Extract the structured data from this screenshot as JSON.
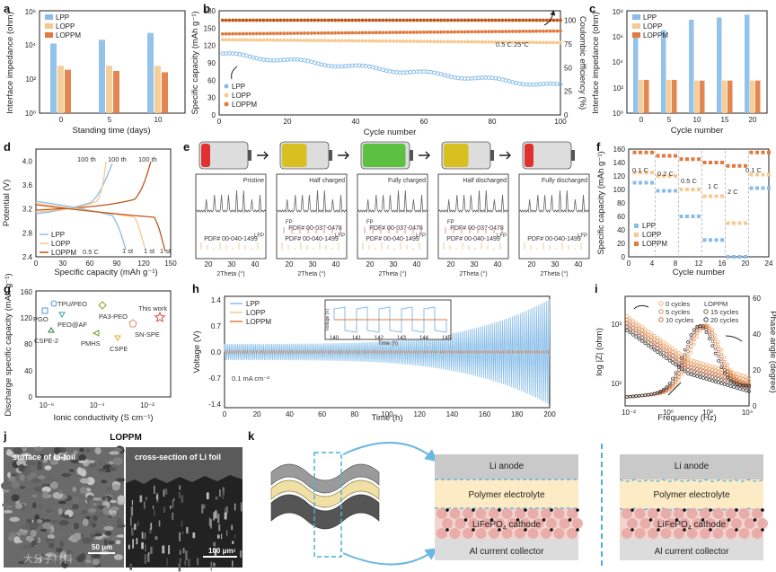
{
  "colors": {
    "lpp": "#87bde8",
    "lopp": "#f5c98f",
    "loppm": "#e07a3e",
    "loppm_dark": "#c05618",
    "red": "#e04a4a"
  },
  "panel_labels": {
    "a": "a",
    "b": "b",
    "c": "c",
    "d": "d",
    "e": "e",
    "f": "f",
    "g": "g",
    "h": "h",
    "i": "i",
    "j": "j",
    "k": "k"
  },
  "legend_names": [
    "LPP",
    "LOPP",
    "LOPPM"
  ],
  "chart_data": [
    {
      "id": "a",
      "type": "bar",
      "xlabel": "Standing time (days)",
      "ylabel": "Interface impedance (ohm)",
      "categories": [
        "0",
        "5",
        "10"
      ],
      "y_scale": "log",
      "ylim": [
        1,
        1000000
      ],
      "yticks": [
        "10⁰",
        "10²",
        "10⁴",
        "10⁶"
      ],
      "series": [
        {
          "name": "LPP",
          "values": [
            12000,
            20000,
            50000
          ]
        },
        {
          "name": "LOPP",
          "values": [
            600,
            600,
            600
          ]
        },
        {
          "name": "LOPPM",
          "values": [
            350,
            300,
            250
          ]
        }
      ]
    },
    {
      "id": "b",
      "type": "scatter",
      "xlabel": "Cycle number",
      "ylabel": "Specific capacity (mAh g⁻¹)",
      "y2label": "Coulombic efficiency (%)",
      "xlim": [
        0,
        100
      ],
      "ylim": [
        0,
        180
      ],
      "y2lim": [
        0,
        110
      ],
      "xticks": [
        "0",
        "20",
        "40",
        "60",
        "80",
        "100"
      ],
      "yticks": [
        "0",
        "30",
        "60",
        "90",
        "120",
        "150",
        "180"
      ],
      "y2ticks": [
        "0",
        "25",
        "50",
        "75",
        "100"
      ],
      "annotation": "0.5 C  25°C",
      "series": [
        {
          "name": "LPP",
          "start": 105,
          "end": 50
        },
        {
          "name": "LOPP",
          "start": 130,
          "end": 125
        },
        {
          "name": "LOPPM",
          "start": 140,
          "end": 145
        },
        {
          "name": "CE",
          "value": 100
        }
      ]
    },
    {
      "id": "c",
      "type": "bar",
      "xlabel": "Cycle number",
      "ylabel": "Interface impedance (ohm)",
      "categories": [
        "0",
        "5",
        "10",
        "15",
        "20"
      ],
      "y_scale": "log",
      "ylim": [
        1,
        100000000
      ],
      "yticks": [
        "10⁰",
        "10²",
        "10⁴",
        "10⁶",
        "10⁸"
      ],
      "series": [
        {
          "name": "LPP",
          "values": [
            1000000,
            3000000,
            20000000,
            30000000,
            50000000
          ]
        },
        {
          "name": "LOPP",
          "values": [
            400,
            400,
            350,
            350,
            350
          ]
        },
        {
          "name": "LOPPM",
          "values": [
            400,
            400,
            350,
            350,
            350
          ]
        }
      ]
    },
    {
      "id": "d",
      "type": "line",
      "xlabel": "Specific capacity (mAh g⁻¹)",
      "ylabel": "Potential (V)",
      "xlim": [
        0,
        150
      ],
      "ylim": [
        2.4,
        4.2
      ],
      "xticks": [
        "0",
        "30",
        "60",
        "90",
        "120",
        "150"
      ],
      "yticks": [
        "2.4",
        "2.8",
        "3.2",
        "3.6",
        "4.0"
      ],
      "annotation": "0.5 C",
      "labels": [
        "100 th",
        "100 th",
        "100 th",
        "1 st",
        "1 st",
        "1 st"
      ]
    },
    {
      "id": "f",
      "type": "scatter",
      "xlabel": "Cycle number",
      "ylabel": "Specific capacity (mAh g⁻¹)",
      "xlim": [
        0,
        24
      ],
      "ylim": [
        0,
        160
      ],
      "xticks": [
        "0",
        "4",
        "8",
        "12",
        "16",
        "20",
        "24"
      ],
      "yticks": [
        "0",
        "20",
        "40",
        "60",
        "80",
        "100",
        "120",
        "140",
        "160"
      ],
      "rates": [
        "0.1 C",
        "0.2 C",
        "0.5 C",
        "1 C",
        "2 C",
        "0.1 C"
      ],
      "series": [
        {
          "name": "LPP",
          "values": [
            110,
            98,
            60,
            25,
            0,
            102
          ]
        },
        {
          "name": "LOPP",
          "values": [
            125,
            120,
            100,
            90,
            50,
            122
          ]
        },
        {
          "name": "LOPPM",
          "values": [
            155,
            150,
            145,
            140,
            135,
            155
          ]
        }
      ]
    },
    {
      "id": "g",
      "type": "scatter",
      "xlabel": "Ionic conductivity (S cm⁻¹)",
      "ylabel": "Discharge specific capacity (mAh g⁻¹)",
      "x_scale": "log",
      "ylim": [
        0,
        160
      ],
      "xticks": [
        "10⁻⁶",
        "10⁻⁴",
        "10⁻²"
      ],
      "yticks": [
        "0",
        "40",
        "80",
        "120",
        "160"
      ],
      "points": [
        {
          "name": "TPU/PEO"
        },
        {
          "name": "PGO"
        },
        {
          "name": "PEO@AF"
        },
        {
          "name": "CSPE-2"
        },
        {
          "name": "PA3-PEO"
        },
        {
          "name": "PMHS"
        },
        {
          "name": "CSPE"
        },
        {
          "name": "SN-SPE"
        },
        {
          "name": "This work"
        }
      ]
    },
    {
      "id": "h",
      "type": "line",
      "xlabel": "Time (h)",
      "ylabel": "Voltage (V)",
      "xlim": [
        0,
        200
      ],
      "ylim": [
        -1.5,
        1.5
      ],
      "xticks": [
        "0",
        "20",
        "40",
        "60",
        "80",
        "100",
        "120",
        "140",
        "160",
        "180",
        "200"
      ],
      "yticks": [
        "-1.4",
        "-0.7",
        "0.0",
        "0.7",
        "1.4"
      ],
      "annotation": "0.1 mA cm⁻²",
      "inset": {
        "xticks": [
          "140",
          "141",
          "142",
          "143",
          "144",
          "145"
        ],
        "xlabel": "Time (h)",
        "ylabel": "Voltage (V)"
      }
    },
    {
      "id": "i",
      "type": "line",
      "xlabel": "Frequency (Hz)",
      "ylabel": "log |Z| (ohm)",
      "y2label": "Phase angle (degree)",
      "xticks": [
        "10⁻²",
        "10⁰",
        "10²",
        "10⁴"
      ],
      "yticks": [
        "10²",
        "10³"
      ],
      "y2ticks": [
        "0",
        "20",
        "40",
        "60"
      ],
      "legend_left": [
        "0 cycles",
        "5 cycles",
        "10 cycles"
      ],
      "legend_group": "LOPPM",
      "legend_right": [
        "15 cycles",
        "20 cycles"
      ]
    }
  ],
  "panel_e": {
    "states": [
      "Pristine",
      "Half charged",
      "Fully charged",
      "Half discharged",
      "Fully discharged"
    ],
    "pdf_lfp": "PDF# 00-040-1499",
    "pdf_fp": "PDF# 00-037-0478",
    "tag_fp": "FP",
    "tag_lfp": "LFP",
    "xlabel": "2Theta (°)",
    "xticks": [
      "20",
      "30",
      "40"
    ]
  },
  "panel_j": {
    "title": "LOPPM",
    "left_label": "surface of Li-foil",
    "right_label": "cross-section of Li foil",
    "scale_left": "50 μm",
    "scale_right": "100 μm",
    "watermark": "大分子材料"
  },
  "panel_k": {
    "li_anode": "Li anode",
    "electrolyte": "Polymer electrolyte",
    "cathode_prefix": "LiFePO",
    "cathode_sub": "4",
    "cathode_suffix": " cathode",
    "collector": "Al current collector"
  }
}
